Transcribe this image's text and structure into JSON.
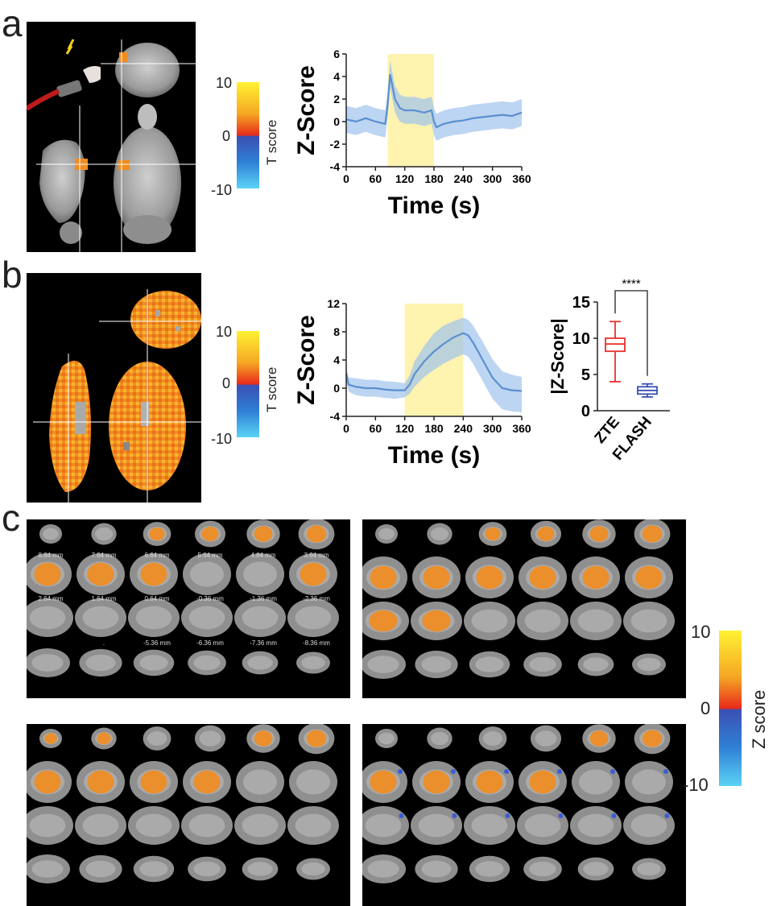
{
  "panels": {
    "a": {
      "letter": "a"
    },
    "b": {
      "letter": "b"
    },
    "c": {
      "letter": "c"
    }
  },
  "colorbar_a": {
    "max": "10",
    "mid": "0",
    "min": "-10",
    "title": "T score"
  },
  "colorbar_b": {
    "max": "10",
    "mid": "0",
    "min": "-10",
    "title": "T score"
  },
  "colorbar_c": {
    "max": "10",
    "mid": "0",
    "min": "-10",
    "title": "Z score"
  },
  "slice_labels": {
    "row1": [
      "8.64 mm",
      "7.64 mm",
      "6.64 mm",
      "5.64 mm",
      "4.64 mm",
      "3.64 mm"
    ],
    "row2": [
      "2.64 mm",
      "1.64 mm",
      "0.64 mm",
      "-0.36 mm",
      "-1.36 mm",
      "-2.36 mm"
    ],
    "row3": [
      ".",
      "-5.36 mm",
      "-6.36 mm",
      "-7.36 mm",
      "-8.36 mm"
    ]
  },
  "colors": {
    "activation": "#f28c1e",
    "line": "#5b8fd1",
    "band": "#9fc3ec",
    "stim": "#fff3b0",
    "zte": "#e8312f",
    "flash": "#3a4fb5"
  },
  "chart_data": [
    {
      "type": "line",
      "panel": "a",
      "xlabel": "Time (s)",
      "ylabel": "Z-Score",
      "xlim": [
        0,
        360
      ],
      "ylim": [
        -4,
        6
      ],
      "xticks": [
        0,
        60,
        120,
        180,
        240,
        300,
        360
      ],
      "yticks": [
        -4,
        -2,
        0,
        2,
        4,
        6
      ],
      "stimulus_window": [
        85,
        180
      ],
      "x": [
        0,
        20,
        40,
        60,
        80,
        85,
        90,
        100,
        110,
        120,
        140,
        160,
        175,
        180,
        185,
        200,
        220,
        240,
        260,
        280,
        300,
        320,
        340,
        360
      ],
      "y": [
        0.2,
        0.0,
        0.3,
        0.0,
        -0.2,
        1.5,
        4.2,
        2.0,
        1.2,
        1.0,
        1.0,
        0.8,
        1.0,
        0.0,
        -0.5,
        -0.2,
        0.0,
        0.1,
        0.3,
        0.4,
        0.5,
        0.6,
        0.5,
        0.8
      ],
      "band": 1.2
    },
    {
      "type": "line",
      "panel": "b",
      "xlabel": "Time (s)",
      "ylabel": "Z-Score",
      "xlim": [
        0,
        360
      ],
      "ylim": [
        -4,
        12
      ],
      "xticks": [
        0,
        60,
        120,
        180,
        240,
        300,
        360
      ],
      "yticks": [
        -4,
        0,
        4,
        8,
        12
      ],
      "stimulus_window": [
        120,
        240
      ],
      "x": [
        0,
        5,
        20,
        40,
        60,
        80,
        100,
        120,
        130,
        140,
        160,
        180,
        200,
        220,
        240,
        250,
        260,
        280,
        300,
        320,
        340,
        360
      ],
      "y": [
        2.0,
        0.5,
        0.2,
        0.0,
        0.0,
        -0.2,
        -0.3,
        -0.3,
        0.5,
        2.0,
        3.8,
        5.2,
        6.3,
        7.2,
        7.8,
        7.5,
        6.5,
        4.0,
        1.5,
        0.0,
        -0.3,
        -0.4
      ],
      "band_low": [
        1.0,
        1.0,
        1.2,
        1.2,
        1.2,
        1.2,
        1.2,
        1.0,
        1.3,
        1.8,
        2.2,
        2.6,
        2.8,
        3.0,
        3.0,
        3.0,
        3.0,
        3.0,
        3.0,
        3.0,
        3.0,
        3.0
      ],
      "band_high": [
        1.0,
        1.0,
        1.2,
        1.2,
        1.2,
        1.2,
        1.2,
        1.0,
        1.3,
        1.8,
        2.2,
        2.6,
        2.6,
        2.3,
        2.2,
        2.2,
        2.4,
        2.6,
        2.6,
        2.4,
        2.2,
        2.0
      ]
    },
    {
      "type": "box",
      "panel": "b",
      "ylabel": "|Z-Score|",
      "ylim": [
        0,
        15
      ],
      "yticks": [
        0,
        5,
        10,
        15
      ],
      "categories": [
        "ZTE",
        "FLASH"
      ],
      "boxes": [
        {
          "name": "ZTE",
          "min": 4.0,
          "q1": 8.2,
          "median": 9.2,
          "q3": 10.0,
          "max": 12.3
        },
        {
          "name": "FLASH",
          "min": 1.9,
          "q1": 2.3,
          "median": 2.8,
          "q3": 3.3,
          "max": 3.7
        }
      ],
      "significance": "****"
    }
  ]
}
